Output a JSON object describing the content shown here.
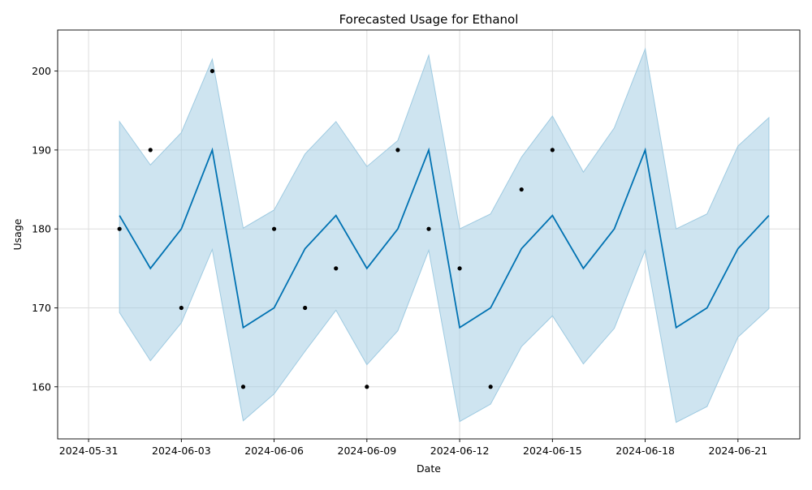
{
  "chart_data": {
    "type": "line",
    "title": "Forecasted Usage for Ethanol",
    "xlabel": "Date",
    "ylabel": "Usage",
    "grid": true,
    "x_ticks": [
      "2024-05-31",
      "2024-06-03",
      "2024-06-06",
      "2024-06-09",
      "2024-06-12",
      "2024-06-15",
      "2024-06-18",
      "2024-06-21"
    ],
    "y_ticks": [
      160,
      170,
      180,
      190,
      200
    ],
    "xlim": [
      "2024-05-30",
      "2024-06-23"
    ],
    "ylim": [
      153.4,
      205.2
    ],
    "colors": {
      "forecast": "#0072B2",
      "band": "#9ecae1",
      "observed": "#000000"
    },
    "forecast": {
      "dates": [
        "2024-06-01",
        "2024-06-02",
        "2024-06-03",
        "2024-06-04",
        "2024-06-05",
        "2024-06-06",
        "2024-06-07",
        "2024-06-08",
        "2024-06-09",
        "2024-06-10",
        "2024-06-11",
        "2024-06-12",
        "2024-06-13",
        "2024-06-14",
        "2024-06-15",
        "2024-06-16",
        "2024-06-17",
        "2024-06-18",
        "2024-06-19",
        "2024-06-20",
        "2024-06-21",
        "2024-06-22"
      ],
      "yhat": [
        181.7,
        175,
        180,
        190,
        167.5,
        170,
        177.5,
        181.7,
        175,
        180,
        190,
        167.5,
        170,
        177.5,
        181.7,
        175,
        180,
        190,
        167.5,
        170,
        177.5,
        181.7
      ],
      "upper": [
        193.6,
        188.1,
        192.2,
        201.5,
        180.1,
        182.4,
        189.5,
        193.6,
        187.9,
        191.2,
        202.0,
        180.0,
        181.9,
        189.1,
        194.3,
        187.2,
        192.8,
        202.8,
        180.0,
        181.9,
        190.5,
        194.1
      ],
      "lower": [
        169.4,
        163.3,
        168.1,
        177.4,
        155.7,
        159.1,
        164.5,
        169.7,
        162.8,
        167.1,
        177.3,
        155.6,
        157.8,
        165.1,
        169.0,
        162.9,
        167.4,
        177.3,
        155.5,
        157.5,
        166.3,
        169.9
      ]
    },
    "observed": {
      "dates": [
        "2024-06-01",
        "2024-06-02",
        "2024-06-03",
        "2024-06-04",
        "2024-06-05",
        "2024-06-06",
        "2024-06-07",
        "2024-06-08",
        "2024-06-09",
        "2024-06-10",
        "2024-06-11",
        "2024-06-12",
        "2024-06-13",
        "2024-06-14",
        "2024-06-15"
      ],
      "values": [
        180,
        190,
        170,
        200,
        160,
        180,
        170,
        175,
        160,
        190,
        180,
        175,
        160,
        185,
        190
      ]
    }
  }
}
